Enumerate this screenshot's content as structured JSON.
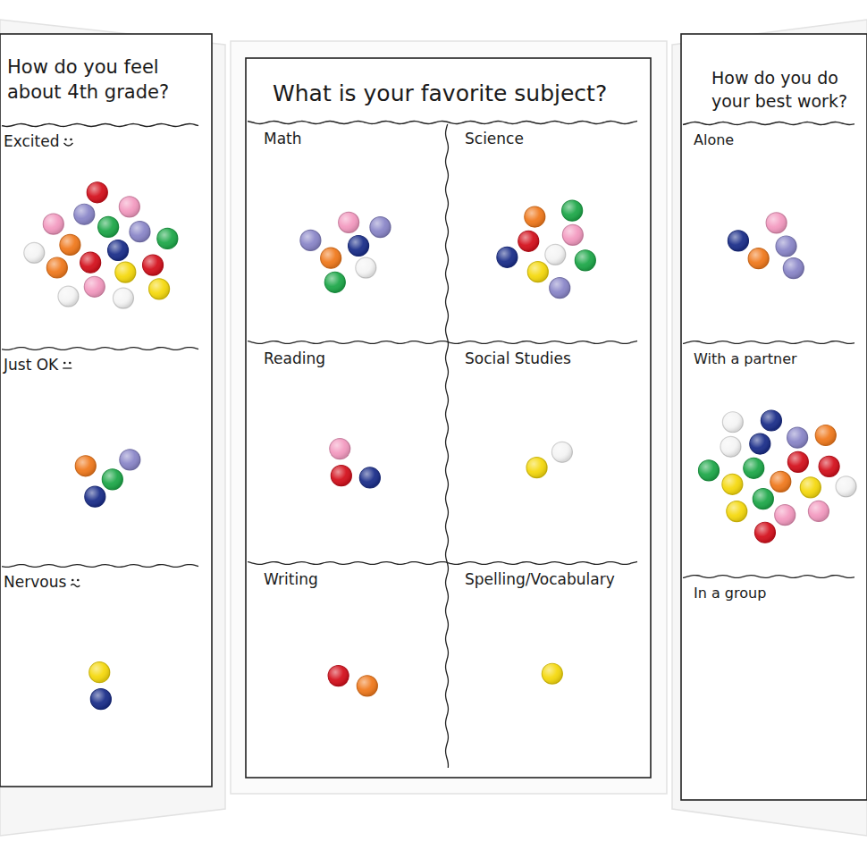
{
  "chart_data": [
    {
      "type": "dot",
      "title": "How do you feel\nabout 4th grade?",
      "categories": [
        "Excited",
        "Just OK",
        "Nervous"
      ],
      "values": [
        18,
        4,
        2
      ],
      "colors": [
        [
          "#1c2f8a",
          "#d4121e",
          "#1fa84a",
          "#f5d90f",
          "#f07a1e",
          "#8a86c8",
          "#f39ac0",
          "#8a86c8",
          "#d4121e",
          "#f07a1e",
          "#f39ac0",
          "#f4f4f4",
          "#f39ac0",
          "#1fa84a",
          "#f4f4f4",
          "#d4121e",
          "#f5d90f",
          "#f4f4f4"
        ],
        [
          "#1fa84a",
          "#f07a1e",
          "#8a86c8",
          "#1c2f8a"
        ],
        [
          "#1c2f8a",
          "#f5d90f"
        ]
      ]
    },
    {
      "type": "dot",
      "title": "What is your favorite subject?",
      "categories": [
        "Math",
        "Science",
        "Reading",
        "Social Studies",
        "Writing",
        "Spelling/Vocabulary"
      ],
      "values": [
        7,
        9,
        3,
        2,
        2,
        1
      ],
      "colors": [
        [
          "#1c2f8a",
          "#f07a1e",
          "#f39ac0",
          "#f4f4f4",
          "#8a86c8",
          "#8a86c8",
          "#1fa84a"
        ],
        [
          "#f4f4f4",
          "#d4121e",
          "#f39ac0",
          "#f5d90f",
          "#f07a1e",
          "#1fa84a",
          "#1c2f8a",
          "#1fa84a",
          "#8a86c8"
        ],
        [
          "#d4121e",
          "#f39ac0",
          "#1c2f8a"
        ],
        [
          "#f5d90f",
          "#f4f4f4"
        ],
        [
          "#d4121e",
          "#f07a1e"
        ],
        [
          "#f5d90f"
        ]
      ]
    },
    {
      "type": "dot",
      "title": "How do you do\nyour best work?",
      "categories": [
        "Alone",
        "With a partner",
        "In a group"
      ],
      "values": [
        5,
        19,
        0
      ],
      "colors": [
        [
          "#8a86c8",
          "#f07a1e",
          "#f39ac0",
          "#8a86c8",
          "#1c2f8a"
        ],
        [
          "#f07a1e",
          "#1fa84a",
          "#d4121e",
          "#1fa84a",
          "#1c2f8a",
          "#f5d90f",
          "#f5d90f",
          "#8a86c8",
          "#f39ac0",
          "#f4f4f4",
          "#d4121e",
          "#f5d90f",
          "#1c2f8a",
          "#f39ac0",
          "#1fa84a",
          "#f07a1e",
          "#d4121e",
          "#f4f4f4",
          "#f4f4f4"
        ],
        []
      ]
    }
  ]
}
